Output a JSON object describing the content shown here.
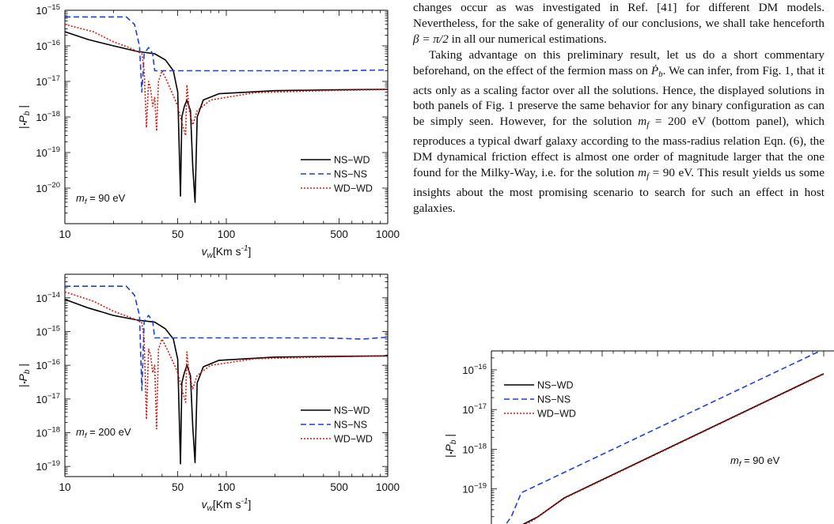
{
  "figure_top": {
    "chart_data": {
      "type": "line",
      "title": "",
      "xlabel_base": "v",
      "xlabel_sub": "w",
      "xlabel_unit": "[Km s",
      "xlabel_exp": "-1",
      "xlabel_end": "]",
      "ylabel_main": "| ",
      "ylabel_p": "P",
      "ylabel_sub": "b",
      "ylabel_end": " |",
      "xscale": "log",
      "yscale": "log",
      "xlim": [
        10,
        1000
      ],
      "ylim": [
        1e-21,
        1e-15
      ],
      "xticks": [
        {
          "v": 10,
          "label": "10"
        },
        {
          "v": 50,
          "label": "50"
        },
        {
          "v": 100,
          "label": "100"
        },
        {
          "v": 500,
          "label": "500"
        },
        {
          "v": 1000,
          "label": "1000"
        }
      ],
      "yticks": [
        {
          "e": -15,
          "label": "10",
          "exp": "−15"
        },
        {
          "e": -16,
          "label": "10",
          "exp": "−16"
        },
        {
          "e": -17,
          "label": "10",
          "exp": "−17"
        },
        {
          "e": -18,
          "label": "10",
          "exp": "−18"
        },
        {
          "e": -19,
          "label": "10",
          "exp": "−19"
        },
        {
          "e": -20,
          "label": "10",
          "exp": "−20"
        }
      ],
      "annotation": {
        "m": "m",
        "sub": "f",
        "text": " = 90 eV"
      },
      "legend": "bottom-right",
      "series": [
        {
          "name": "NS−WD",
          "color": "#000000",
          "dash": "",
          "points": [
            [
              10,
              2.5e-16
            ],
            [
              14,
              1.5e-16
            ],
            [
              20,
              1e-16
            ],
            [
              28,
              7e-17
            ],
            [
              36,
              6e-17
            ],
            [
              42,
              4e-17
            ],
            [
              47,
              2e-17
            ],
            [
              50,
              5e-18
            ],
            [
              52,
              6e-21
            ],
            [
              53,
              1e-18
            ],
            [
              55,
              2e-18
            ],
            [
              57,
              3e-18
            ],
            [
              60,
              1.5e-18
            ],
            [
              62,
              4e-20
            ],
            [
              64,
              4e-21
            ],
            [
              66,
              1e-18
            ],
            [
              72,
              3e-18
            ],
            [
              90,
              4.5e-18
            ],
            [
              200,
              5.5e-18
            ],
            [
              500,
              5.8e-18
            ],
            [
              1000,
              6e-18
            ]
          ]
        },
        {
          "name": "NS−NS",
          "color": "#1f3fd6",
          "dash": "7,4",
          "points": [
            [
              10,
              6.5e-16
            ],
            [
              24,
              6.5e-16
            ],
            [
              27,
              4e-16
            ],
            [
              29,
              1e-16
            ],
            [
              30,
              5e-18
            ],
            [
              31,
              6e-17
            ],
            [
              33,
              9e-17
            ],
            [
              35,
              6e-17
            ],
            [
              36,
              2e-17
            ],
            [
              100,
              2e-17
            ],
            [
              500,
              2e-17
            ],
            [
              1000,
              2.1e-17
            ]
          ]
        },
        {
          "name": "WD−WD",
          "color": "#d81818",
          "dash": "2,2",
          "points": [
            [
              10,
              4e-16
            ],
            [
              15,
              2.5e-16
            ],
            [
              20,
              1.3e-16
            ],
            [
              25,
              9e-17
            ],
            [
              28,
              7e-17
            ],
            [
              30,
              6e-17
            ],
            [
              31,
              2e-17
            ],
            [
              32,
              5e-19
            ],
            [
              33,
              1e-17
            ],
            [
              34,
              6e-18
            ],
            [
              35,
              2e-18
            ],
            [
              36,
              3.5e-18
            ],
            [
              37,
              4e-19
            ],
            [
              38,
              1e-17
            ],
            [
              40,
              2e-17
            ],
            [
              43,
              1e-17
            ],
            [
              47,
              4e-18
            ],
            [
              50,
              2e-18
            ],
            [
              53,
              7e-19
            ],
            [
              56,
              3e-19
            ],
            [
              57,
              8e-18
            ],
            [
              59,
              1.5e-18
            ],
            [
              62,
              6e-19
            ],
            [
              66,
              1.5e-18
            ],
            [
              80,
              3e-18
            ],
            [
              150,
              4.8e-18
            ],
            [
              400,
              5.5e-18
            ],
            [
              1000,
              5.9e-18
            ]
          ]
        }
      ]
    }
  },
  "figure_bottom": {
    "chart_data": {
      "type": "line",
      "title": "",
      "xlabel_base": "v",
      "xlabel_sub": "w",
      "xlabel_unit": "[Km s",
      "xlabel_exp": "-1",
      "xlabel_end": "]",
      "ylabel_main": "| ",
      "ylabel_p": "P",
      "ylabel_sub": "b",
      "ylabel_end": " |",
      "xscale": "log",
      "yscale": "log",
      "xlim": [
        10,
        1000
      ],
      "ylim": [
        5e-20,
        5e-14
      ],
      "xticks": [
        {
          "v": 10,
          "label": "10"
        },
        {
          "v": 50,
          "label": "50"
        },
        {
          "v": 100,
          "label": "100"
        },
        {
          "v": 500,
          "label": "500"
        },
        {
          "v": 1000,
          "label": "1000"
        }
      ],
      "yticks": [
        {
          "e": -14,
          "label": "10",
          "exp": "−14"
        },
        {
          "e": -15,
          "label": "10",
          "exp": "−15"
        },
        {
          "e": -16,
          "label": "10",
          "exp": "−16"
        },
        {
          "e": -17,
          "label": "10",
          "exp": "−17"
        },
        {
          "e": -18,
          "label": "10",
          "exp": "−18"
        },
        {
          "e": -19,
          "label": "10",
          "exp": "−19"
        }
      ],
      "annotation": {
        "m": "m",
        "sub": "f",
        "text": " = 200 eV"
      },
      "legend": "bottom-right",
      "series": [
        {
          "name": "NS−WD",
          "color": "#000000",
          "dash": "",
          "points": [
            [
              10,
              9e-15
            ],
            [
              14,
              5e-15
            ],
            [
              20,
              3e-15
            ],
            [
              28,
              2.2e-15
            ],
            [
              36,
              1.9e-15
            ],
            [
              42,
              1.2e-15
            ],
            [
              47,
              6e-16
            ],
            [
              50,
              1.5e-16
            ],
            [
              52,
              1.2e-19
            ],
            [
              53,
              3e-17
            ],
            [
              55,
              6e-17
            ],
            [
              57,
              1e-16
            ],
            [
              60,
              5e-17
            ],
            [
              62,
              1.5e-18
            ],
            [
              64,
              1.3e-19
            ],
            [
              66,
              3e-17
            ],
            [
              72,
              9e-17
            ],
            [
              90,
              1.4e-16
            ],
            [
              200,
              1.75e-16
            ],
            [
              500,
              1.85e-16
            ],
            [
              1000,
              1.9e-16
            ]
          ]
        },
        {
          "name": "NS−NS",
          "color": "#1f3fd6",
          "dash": "7,4",
          "points": [
            [
              10,
              2.2e-14
            ],
            [
              24,
              2.2e-14
            ],
            [
              27,
              1.2e-14
            ],
            [
              29,
              3e-15
            ],
            [
              30,
              1.8e-17
            ],
            [
              31,
              2e-15
            ],
            [
              33,
              3e-15
            ],
            [
              35,
              2e-15
            ],
            [
              36,
              6.5e-16
            ],
            [
              100,
              6.5e-16
            ],
            [
              400,
              6.5e-16
            ],
            [
              700,
              6e-16
            ],
            [
              1000,
              6.8e-16
            ]
          ]
        },
        {
          "name": "WD−WD",
          "color": "#d81818",
          "dash": "2,2",
          "points": [
            [
              10,
              1.5e-14
            ],
            [
              15,
              8e-15
            ],
            [
              20,
              4e-15
            ],
            [
              25,
              2.7e-15
            ],
            [
              28,
              2.2e-15
            ],
            [
              30,
              1.8e-15
            ],
            [
              31,
              6e-16
            ],
            [
              32,
              2.5e-18
            ],
            [
              33,
              3e-16
            ],
            [
              34,
              2e-16
            ],
            [
              35,
              6e-17
            ],
            [
              36,
              1e-16
            ],
            [
              37,
              1.3e-18
            ],
            [
              38,
              3e-16
            ],
            [
              40,
              6e-16
            ],
            [
              43,
              3e-16
            ],
            [
              47,
              1.2e-16
            ],
            [
              50,
              6e-17
            ],
            [
              53,
              2e-17
            ],
            [
              56,
              8e-18
            ],
            [
              57,
              2.5e-16
            ],
            [
              59,
              5e-17
            ],
            [
              62,
              2e-17
            ],
            [
              66,
              5e-17
            ],
            [
              80,
              1e-16
            ],
            [
              150,
              1.55e-16
            ],
            [
              400,
              1.75e-16
            ],
            [
              1000,
              1.9e-16
            ]
          ]
        }
      ]
    }
  },
  "figure_right": {
    "chart_data": {
      "type": "line",
      "title": "",
      "ylabel_main": "| ",
      "ylabel_p": "P",
      "ylabel_sub": "b",
      "ylabel_end": " |",
      "yscale": "log",
      "ylim": [
        5e-21,
        3e-16
      ],
      "yticks": [
        {
          "e": -16,
          "label": "10",
          "exp": "−16"
        },
        {
          "e": -17,
          "label": "10",
          "exp": "−17"
        },
        {
          "e": -18,
          "label": "10",
          "exp": "−18"
        },
        {
          "e": -19,
          "label": "10",
          "exp": "−19"
        }
      ],
      "annotation": {
        "m": "m",
        "sub": "f",
        "text": " = 90 eV"
      },
      "legend": "top-left",
      "series": [
        {
          "name": "NS−WD",
          "color": "#000000",
          "dash": "",
          "points": [
            [
              0.0,
              5e-21
            ],
            [
              0.14,
              2e-20
            ],
            [
              0.22,
              6e-20
            ],
            [
              1.0,
              8e-17
            ]
          ]
        },
        {
          "name": "NS−NS",
          "color": "#1f3fd6",
          "dash": "7,4",
          "points": [
            [
              0.0,
              4e-21
            ],
            [
              0.06,
              2e-20
            ],
            [
              0.09,
              8e-20
            ],
            [
              1.0,
              3.3e-16
            ]
          ]
        },
        {
          "name": "WD−WD",
          "color": "#d81818",
          "dash": "2,2",
          "points": [
            [
              0.0,
              5e-21
            ],
            [
              0.12,
              1.5e-20
            ],
            [
              0.22,
              5.8e-20
            ],
            [
              1.0,
              7.8e-17
            ]
          ]
        }
      ]
    }
  },
  "text": {
    "p1_a": "changes occur as was investigated in Ref. [41] for different DM models. Nevertheless, for the sake of generality of our conclusions, we shall take henceforth ",
    "p1_math": "β = π/2",
    "p1_b": " in all our numerical estimations.",
    "p2_a": "Taking advantage on this preliminary result, let us do a short commentary beforehand, on the effect of the fermion mass on ",
    "p2_pdot": "Ṗ",
    "p2_pdot_sub": "b",
    "p2_b": ". We can infer, from Fig. 1, that it acts only as a scaling factor over all the solutions. Hence, the displayed solutions in both panels of Fig. 1 preserve the same behavior for any binary configuration as can be simply seen. However, for the solution ",
    "p2_m1": "m",
    "p2_m1_sub": "f",
    "p2_m1_val": " = 200 eV",
    "p2_c": " (bottom panel), which reproduces a typical dwarf galaxy according to the mass-radius relation Eqn. (6), the DM dynamical friction effect is almost one order of magnitude larger that the one found for the Milky-Way, i.e. for the solution ",
    "p2_m2": "m",
    "p2_m2_sub": "f",
    "p2_m2_val": " = 90 eV",
    "p2_d": ". This result yields us some insights about the most promising scenario to search for such an effect in host galaxies."
  }
}
